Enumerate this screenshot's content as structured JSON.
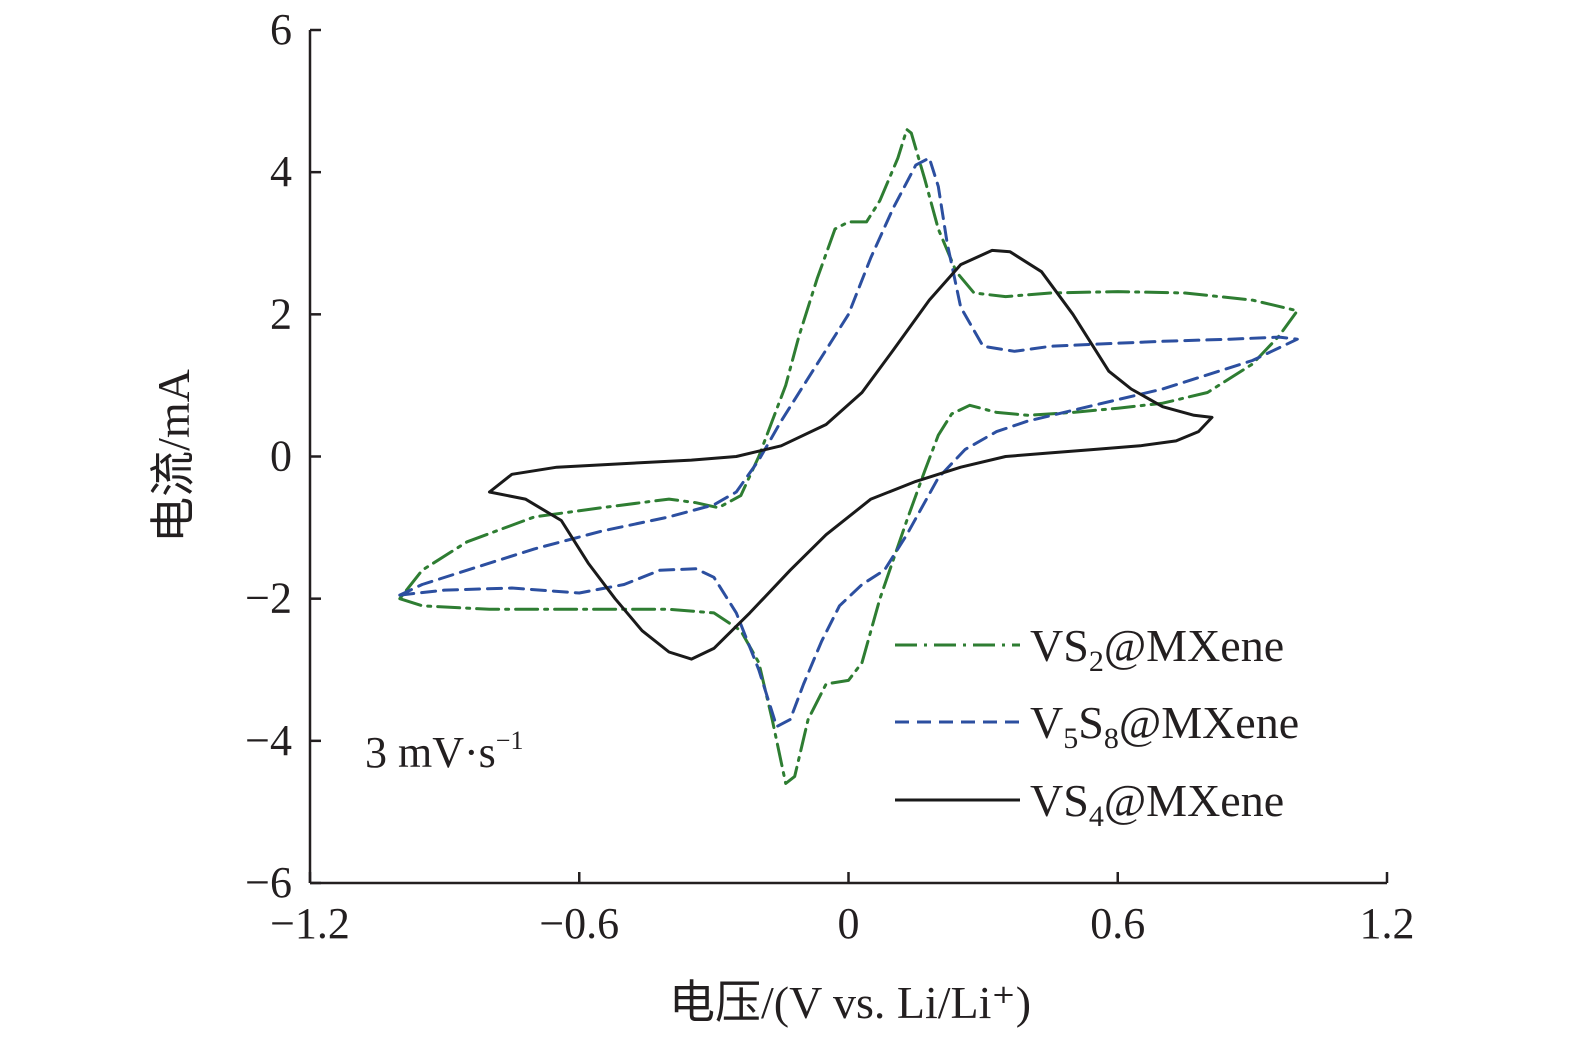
{
  "chart_data": {
    "type": "line",
    "title": "",
    "xlabel": "电压/(V vs. Li/Li⁺)",
    "ylabel": "电流/mA",
    "xlim": [
      -1.2,
      1.2
    ],
    "ylim": [
      -6,
      6
    ],
    "x_ticks": [
      -1.2,
      -0.6,
      0,
      0.6,
      1.2
    ],
    "y_ticks": [
      -6,
      -4,
      -2,
      0,
      2,
      4,
      6
    ],
    "x_tick_labels": [
      "−1.2",
      "−0.6",
      "0",
      "0.6",
      "1.2"
    ],
    "y_tick_labels": [
      "−6",
      "−4",
      "−2",
      "0",
      "2",
      "4",
      "6"
    ],
    "grid": false,
    "legend_position": "bottom-right",
    "annotation": {
      "main": "3 mV·s",
      "superscript": "−1"
    },
    "series": [
      {
        "name": "VS2@MXene",
        "legend_parts": [
          {
            "text": "VS",
            "sub": false
          },
          {
            "text": "2",
            "sub": true
          },
          {
            "text": "@MXene",
            "sub": false
          }
        ],
        "color": "#2e7d32",
        "style": "dash-dot",
        "points": [
          [
            -1.0,
            -2.0
          ],
          [
            -0.95,
            -2.1
          ],
          [
            -0.8,
            -2.15
          ],
          [
            -0.6,
            -2.15
          ],
          [
            -0.4,
            -2.15
          ],
          [
            -0.3,
            -2.2
          ],
          [
            -0.24,
            -2.45
          ],
          [
            -0.2,
            -2.9
          ],
          [
            -0.17,
            -3.7
          ],
          [
            -0.14,
            -4.6
          ],
          [
            -0.12,
            -4.5
          ],
          [
            -0.09,
            -3.7
          ],
          [
            -0.05,
            -3.2
          ],
          [
            0.0,
            -3.15
          ],
          [
            0.03,
            -2.9
          ],
          [
            0.07,
            -2.0
          ],
          [
            0.13,
            -0.9
          ],
          [
            0.17,
            -0.2
          ],
          [
            0.2,
            0.3
          ],
          [
            0.23,
            0.6
          ],
          [
            0.27,
            0.72
          ],
          [
            0.33,
            0.62
          ],
          [
            0.4,
            0.58
          ],
          [
            0.5,
            0.62
          ],
          [
            0.6,
            0.68
          ],
          [
            0.7,
            0.75
          ],
          [
            0.8,
            0.9
          ],
          [
            0.9,
            1.3
          ],
          [
            0.96,
            1.7
          ],
          [
            1.0,
            2.05
          ],
          [
            0.98,
            2.08
          ],
          [
            0.9,
            2.2
          ],
          [
            0.75,
            2.3
          ],
          [
            0.6,
            2.32
          ],
          [
            0.45,
            2.3
          ],
          [
            0.35,
            2.25
          ],
          [
            0.28,
            2.3
          ],
          [
            0.24,
            2.6
          ],
          [
            0.2,
            3.2
          ],
          [
            0.17,
            3.9
          ],
          [
            0.14,
            4.55
          ],
          [
            0.13,
            4.6
          ],
          [
            0.11,
            4.2
          ],
          [
            0.07,
            3.6
          ],
          [
            0.04,
            3.3
          ],
          [
            0.0,
            3.3
          ],
          [
            -0.03,
            3.2
          ],
          [
            -0.07,
            2.5
          ],
          [
            -0.11,
            1.7
          ],
          [
            -0.14,
            1.0
          ],
          [
            -0.17,
            0.5
          ],
          [
            -0.2,
            0.0
          ],
          [
            -0.24,
            -0.55
          ],
          [
            -0.29,
            -0.72
          ],
          [
            -0.34,
            -0.65
          ],
          [
            -0.4,
            -0.6
          ],
          [
            -0.55,
            -0.72
          ],
          [
            -0.7,
            -0.85
          ],
          [
            -0.85,
            -1.2
          ],
          [
            -0.95,
            -1.6
          ],
          [
            -1.0,
            -2.0
          ]
        ]
      },
      {
        "name": "V5S8@MXene",
        "legend_parts": [
          {
            "text": "V",
            "sub": false
          },
          {
            "text": "5",
            "sub": true
          },
          {
            "text": "S",
            "sub": false
          },
          {
            "text": "8",
            "sub": true
          },
          {
            "text": "@MXene",
            "sub": false
          }
        ],
        "color": "#2c4fa0",
        "style": "dashed",
        "points": [
          [
            -1.0,
            -1.95
          ],
          [
            -0.9,
            -1.88
          ],
          [
            -0.75,
            -1.85
          ],
          [
            -0.6,
            -1.92
          ],
          [
            -0.5,
            -1.8
          ],
          [
            -0.42,
            -1.6
          ],
          [
            -0.34,
            -1.58
          ],
          [
            -0.3,
            -1.7
          ],
          [
            -0.25,
            -2.2
          ],
          [
            -0.2,
            -3.0
          ],
          [
            -0.16,
            -3.8
          ],
          [
            -0.13,
            -3.7
          ],
          [
            -0.1,
            -3.2
          ],
          [
            -0.06,
            -2.6
          ],
          [
            -0.02,
            -2.1
          ],
          [
            0.03,
            -1.8
          ],
          [
            0.08,
            -1.6
          ],
          [
            0.13,
            -1.1
          ],
          [
            0.2,
            -0.3
          ],
          [
            0.26,
            0.1
          ],
          [
            0.33,
            0.35
          ],
          [
            0.4,
            0.5
          ],
          [
            0.5,
            0.65
          ],
          [
            0.6,
            0.8
          ],
          [
            0.7,
            0.95
          ],
          [
            0.8,
            1.15
          ],
          [
            0.9,
            1.35
          ],
          [
            1.0,
            1.65
          ],
          [
            0.96,
            1.68
          ],
          [
            0.85,
            1.65
          ],
          [
            0.7,
            1.62
          ],
          [
            0.55,
            1.58
          ],
          [
            0.45,
            1.55
          ],
          [
            0.37,
            1.48
          ],
          [
            0.3,
            1.55
          ],
          [
            0.25,
            2.1
          ],
          [
            0.22,
            3.0
          ],
          [
            0.2,
            3.8
          ],
          [
            0.18,
            4.2
          ],
          [
            0.15,
            4.1
          ],
          [
            0.1,
            3.5
          ],
          [
            0.05,
            2.8
          ],
          [
            0.0,
            2.0
          ],
          [
            -0.05,
            1.5
          ],
          [
            -0.1,
            1.0
          ],
          [
            -0.15,
            0.5
          ],
          [
            -0.2,
            -0.05
          ],
          [
            -0.25,
            -0.5
          ],
          [
            -0.3,
            -0.68
          ],
          [
            -0.4,
            -0.85
          ],
          [
            -0.55,
            -1.05
          ],
          [
            -0.7,
            -1.3
          ],
          [
            -0.85,
            -1.6
          ],
          [
            -0.95,
            -1.8
          ],
          [
            -1.0,
            -1.95
          ]
        ]
      },
      {
        "name": "VS4@MXene",
        "legend_parts": [
          {
            "text": "VS",
            "sub": false
          },
          {
            "text": "4",
            "sub": true
          },
          {
            "text": "@MXene",
            "sub": false
          }
        ],
        "color": "#1a1a1a",
        "style": "solid",
        "points": [
          [
            -0.8,
            -0.5
          ],
          [
            -0.72,
            -0.6
          ],
          [
            -0.64,
            -0.9
          ],
          [
            -0.58,
            -1.5
          ],
          [
            -0.52,
            -2.0
          ],
          [
            -0.46,
            -2.45
          ],
          [
            -0.4,
            -2.75
          ],
          [
            -0.35,
            -2.85
          ],
          [
            -0.3,
            -2.7
          ],
          [
            -0.22,
            -2.2
          ],
          [
            -0.13,
            -1.6
          ],
          [
            -0.05,
            -1.1
          ],
          [
            0.05,
            -0.6
          ],
          [
            0.15,
            -0.35
          ],
          [
            0.25,
            -0.15
          ],
          [
            0.35,
            0.0
          ],
          [
            0.45,
            0.05
          ],
          [
            0.55,
            0.1
          ],
          [
            0.65,
            0.15
          ],
          [
            0.73,
            0.22
          ],
          [
            0.78,
            0.35
          ],
          [
            0.81,
            0.55
          ],
          [
            0.77,
            0.58
          ],
          [
            0.7,
            0.7
          ],
          [
            0.63,
            0.95
          ],
          [
            0.58,
            1.2
          ],
          [
            0.5,
            2.0
          ],
          [
            0.43,
            2.6
          ],
          [
            0.36,
            2.88
          ],
          [
            0.32,
            2.9
          ],
          [
            0.25,
            2.7
          ],
          [
            0.18,
            2.2
          ],
          [
            0.1,
            1.5
          ],
          [
            0.03,
            0.9
          ],
          [
            -0.05,
            0.45
          ],
          [
            -0.15,
            0.15
          ],
          [
            -0.25,
            0.0
          ],
          [
            -0.35,
            -0.05
          ],
          [
            -0.5,
            -0.1
          ],
          [
            -0.65,
            -0.15
          ],
          [
            -0.75,
            -0.25
          ],
          [
            -0.8,
            -0.5
          ]
        ]
      }
    ]
  }
}
